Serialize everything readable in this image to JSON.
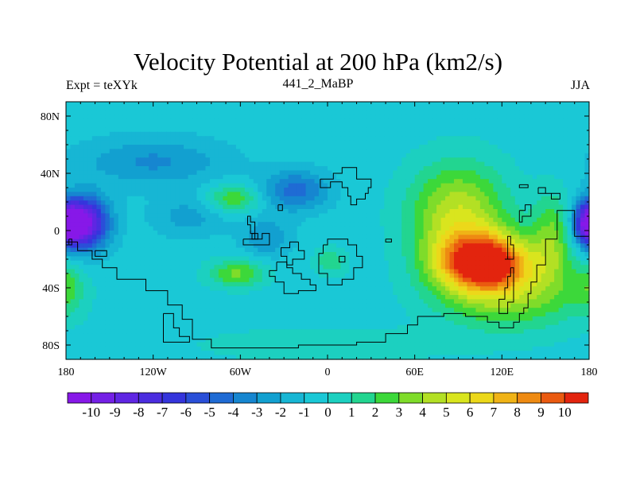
{
  "chart_data": {
    "type": "heatmap",
    "title": "Velocity Potential at 200 hPa (km2/s)",
    "left_string": "Expt = teXYk",
    "center_string": "441_2_MaBP",
    "right_string": "JJA",
    "x_ticks": [
      {
        "lon": -180,
        "label": "180"
      },
      {
        "lon": -120,
        "label": "120W"
      },
      {
        "lon": -60,
        "label": "60W"
      },
      {
        "lon": 0,
        "label": "0"
      },
      {
        "lon": 60,
        "label": "60E"
      },
      {
        "lon": 120,
        "label": "120E"
      },
      {
        "lon": 180,
        "label": "180"
      }
    ],
    "y_ticks": [
      {
        "lat": 80,
        "label": "80N"
      },
      {
        "lat": 40,
        "label": "40N"
      },
      {
        "lat": 0,
        "label": "0"
      },
      {
        "lat": -40,
        "label": "40S"
      },
      {
        "lat": -80,
        "label": "80S"
      }
    ],
    "xlim": [
      -180,
      180
    ],
    "ylim": [
      -90,
      90
    ],
    "background_level": -0.5,
    "features": [
      {
        "lon": -168,
        "lat": 5,
        "value": -10.5,
        "sx": 12,
        "sy": 13
      },
      {
        "lon": -120,
        "lat": 48,
        "value": -3.2,
        "sx": 35,
        "sy": 12
      },
      {
        "lon": -65,
        "lat": 22,
        "value": 3.0,
        "sx": 13,
        "sy": 7
      },
      {
        "lon": -22,
        "lat": 28,
        "value": -4.5,
        "sx": 16,
        "sy": 10
      },
      {
        "lon": -42,
        "lat": -5,
        "value": -3.0,
        "sx": 12,
        "sy": 10
      },
      {
        "lon": -95,
        "lat": 10,
        "value": -2.5,
        "sx": 18,
        "sy": 10
      },
      {
        "lon": -62,
        "lat": -30,
        "value": 3.2,
        "sx": 14,
        "sy": 7
      },
      {
        "lon": 2,
        "lat": -22,
        "value": 1.8,
        "sx": 8,
        "sy": 7
      },
      {
        "lon": 108,
        "lat": -22,
        "value": 10.5,
        "sx": 22,
        "sy": 14
      },
      {
        "lon": 90,
        "lat": 10,
        "value": 5.0,
        "sx": 24,
        "sy": 26
      },
      {
        "lon": 125,
        "lat": -45,
        "value": 3.5,
        "sx": 35,
        "sy": 18
      },
      {
        "lon": 155,
        "lat": -5,
        "value": 3.0,
        "sx": 10,
        "sy": 22
      },
      {
        "lon": 180,
        "lat": 5,
        "value": -8.0,
        "sx": 7,
        "sy": 10
      },
      {
        "lon": -180,
        "lat": -40,
        "value": 1.8,
        "sx": 8,
        "sy": 12
      },
      {
        "lon": 0,
        "lat": -80,
        "value": 1.0,
        "sx": 60,
        "sy": 8
      }
    ],
    "colorbar": {
      "levels": [
        -10,
        -9,
        -8,
        -7,
        -6,
        -5,
        -4,
        -3,
        -2,
        -1,
        0,
        1,
        2,
        3,
        4,
        5,
        6,
        7,
        8,
        9,
        10
      ],
      "labels": [
        "-10",
        "-9",
        "-8",
        "-7",
        "-6",
        "-5",
        "-4",
        "-3",
        "-2",
        "-1",
        "0",
        "1",
        "2",
        "3",
        "4",
        "5",
        "6",
        "7",
        "8",
        "9",
        "10"
      ],
      "colors": [
        "#8718e8",
        "#7420e6",
        "#5f26e3",
        "#4b2ddf",
        "#3535dc",
        "#2a4fd8",
        "#1f6bd4",
        "#1686d0",
        "#12a0d0",
        "#17b6d4",
        "#1ac8d6",
        "#1cd0c0",
        "#22d590",
        "#3cd83a",
        "#7fdc2a",
        "#b3e024",
        "#d9e51e",
        "#ecd81a",
        "#f0b316",
        "#ee8a12",
        "#ea5a10",
        "#e3240e"
      ]
    }
  }
}
